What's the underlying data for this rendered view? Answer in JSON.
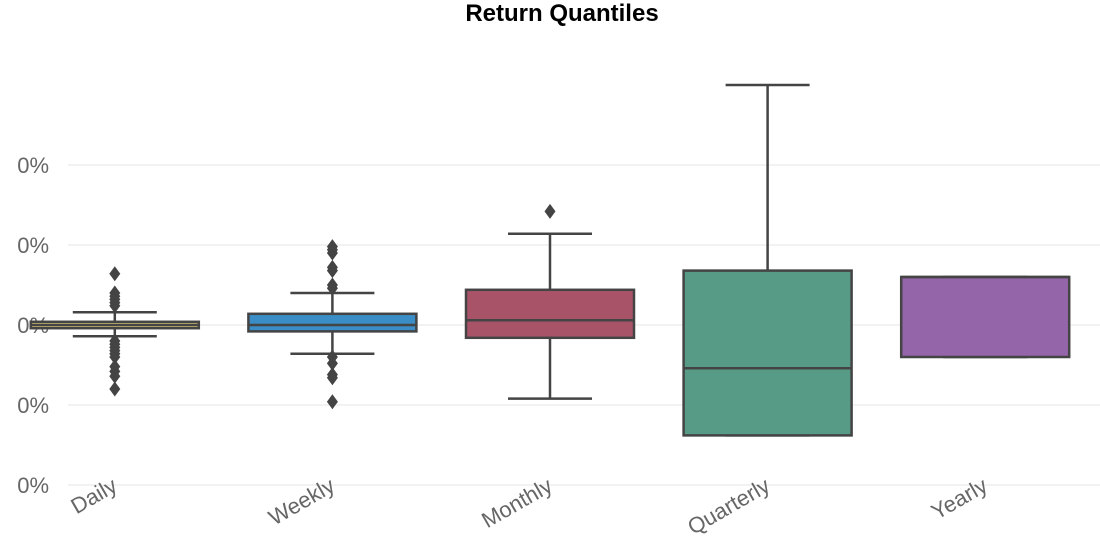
{
  "chart_data": {
    "type": "box",
    "title": "Return Quantiles",
    "xlabel": "",
    "ylabel": "",
    "ylim": [
      -0.0019,
      0.0026
    ],
    "grid": true,
    "legend": "none",
    "y_tick_values": [
      -0.001,
      0.0,
      0.001,
      0.002
    ],
    "yticks": [
      "0%",
      "0%",
      "0%",
      "0%",
      "0%"
    ],
    "y_ticks": [
      -0.001,
      -0.0005,
      0.0,
      0.0005,
      0.001
    ],
    "categories": [
      "Daily",
      "Weekly",
      "Monthly",
      "Quarterly",
      "Yearly"
    ],
    "series": [
      {
        "name": "Daily",
        "color": "#d5c57c",
        "whisker_low": -7e-05,
        "q1": -2e-05,
        "median": 0.0,
        "q3": 2e-05,
        "whisker_high": 8e-05,
        "outliers": [
          0.00032,
          0.0002,
          0.00018,
          0.00016,
          0.00014,
          0.00012,
          -0.0001,
          -0.00012,
          -0.00014,
          -0.00016,
          -0.00018,
          -0.0002,
          -0.00026,
          -0.00029,
          -0.00032,
          -0.0004
        ]
      },
      {
        "name": "Weekly",
        "color": "#3a8dc6",
        "whisker_low": -0.00018,
        "q1": -4e-05,
        "median": 0.0,
        "q3": 7e-05,
        "whisker_high": 0.0002,
        "outliers": [
          0.00049,
          0.00047,
          0.00045,
          0.00036,
          0.00034,
          0.00025,
          0.00023,
          -0.0002,
          -0.00024,
          -0.00031,
          -0.00033,
          -0.00048
        ]
      },
      {
        "name": "Monthly",
        "color": "#a95369",
        "whisker_low": -0.00046,
        "q1": -8e-05,
        "median": 3e-05,
        "q3": 0.00022,
        "whisker_high": 0.00057,
        "outliers": [
          0.00071
        ]
      },
      {
        "name": "Quarterly",
        "color": "#579b86",
        "whisker_low": -0.00069,
        "q1": -0.00069,
        "median": -0.00027,
        "q3": 0.00034,
        "whisker_high": 0.0015,
        "outliers": []
      },
      {
        "name": "Yearly",
        "color": "#9565aa",
        "whisker_low": -0.0002,
        "q1": -0.0002,
        "median": 0.0003,
        "q3": 0.0003,
        "whisker_high": 0.0003,
        "outliers": []
      }
    ]
  }
}
